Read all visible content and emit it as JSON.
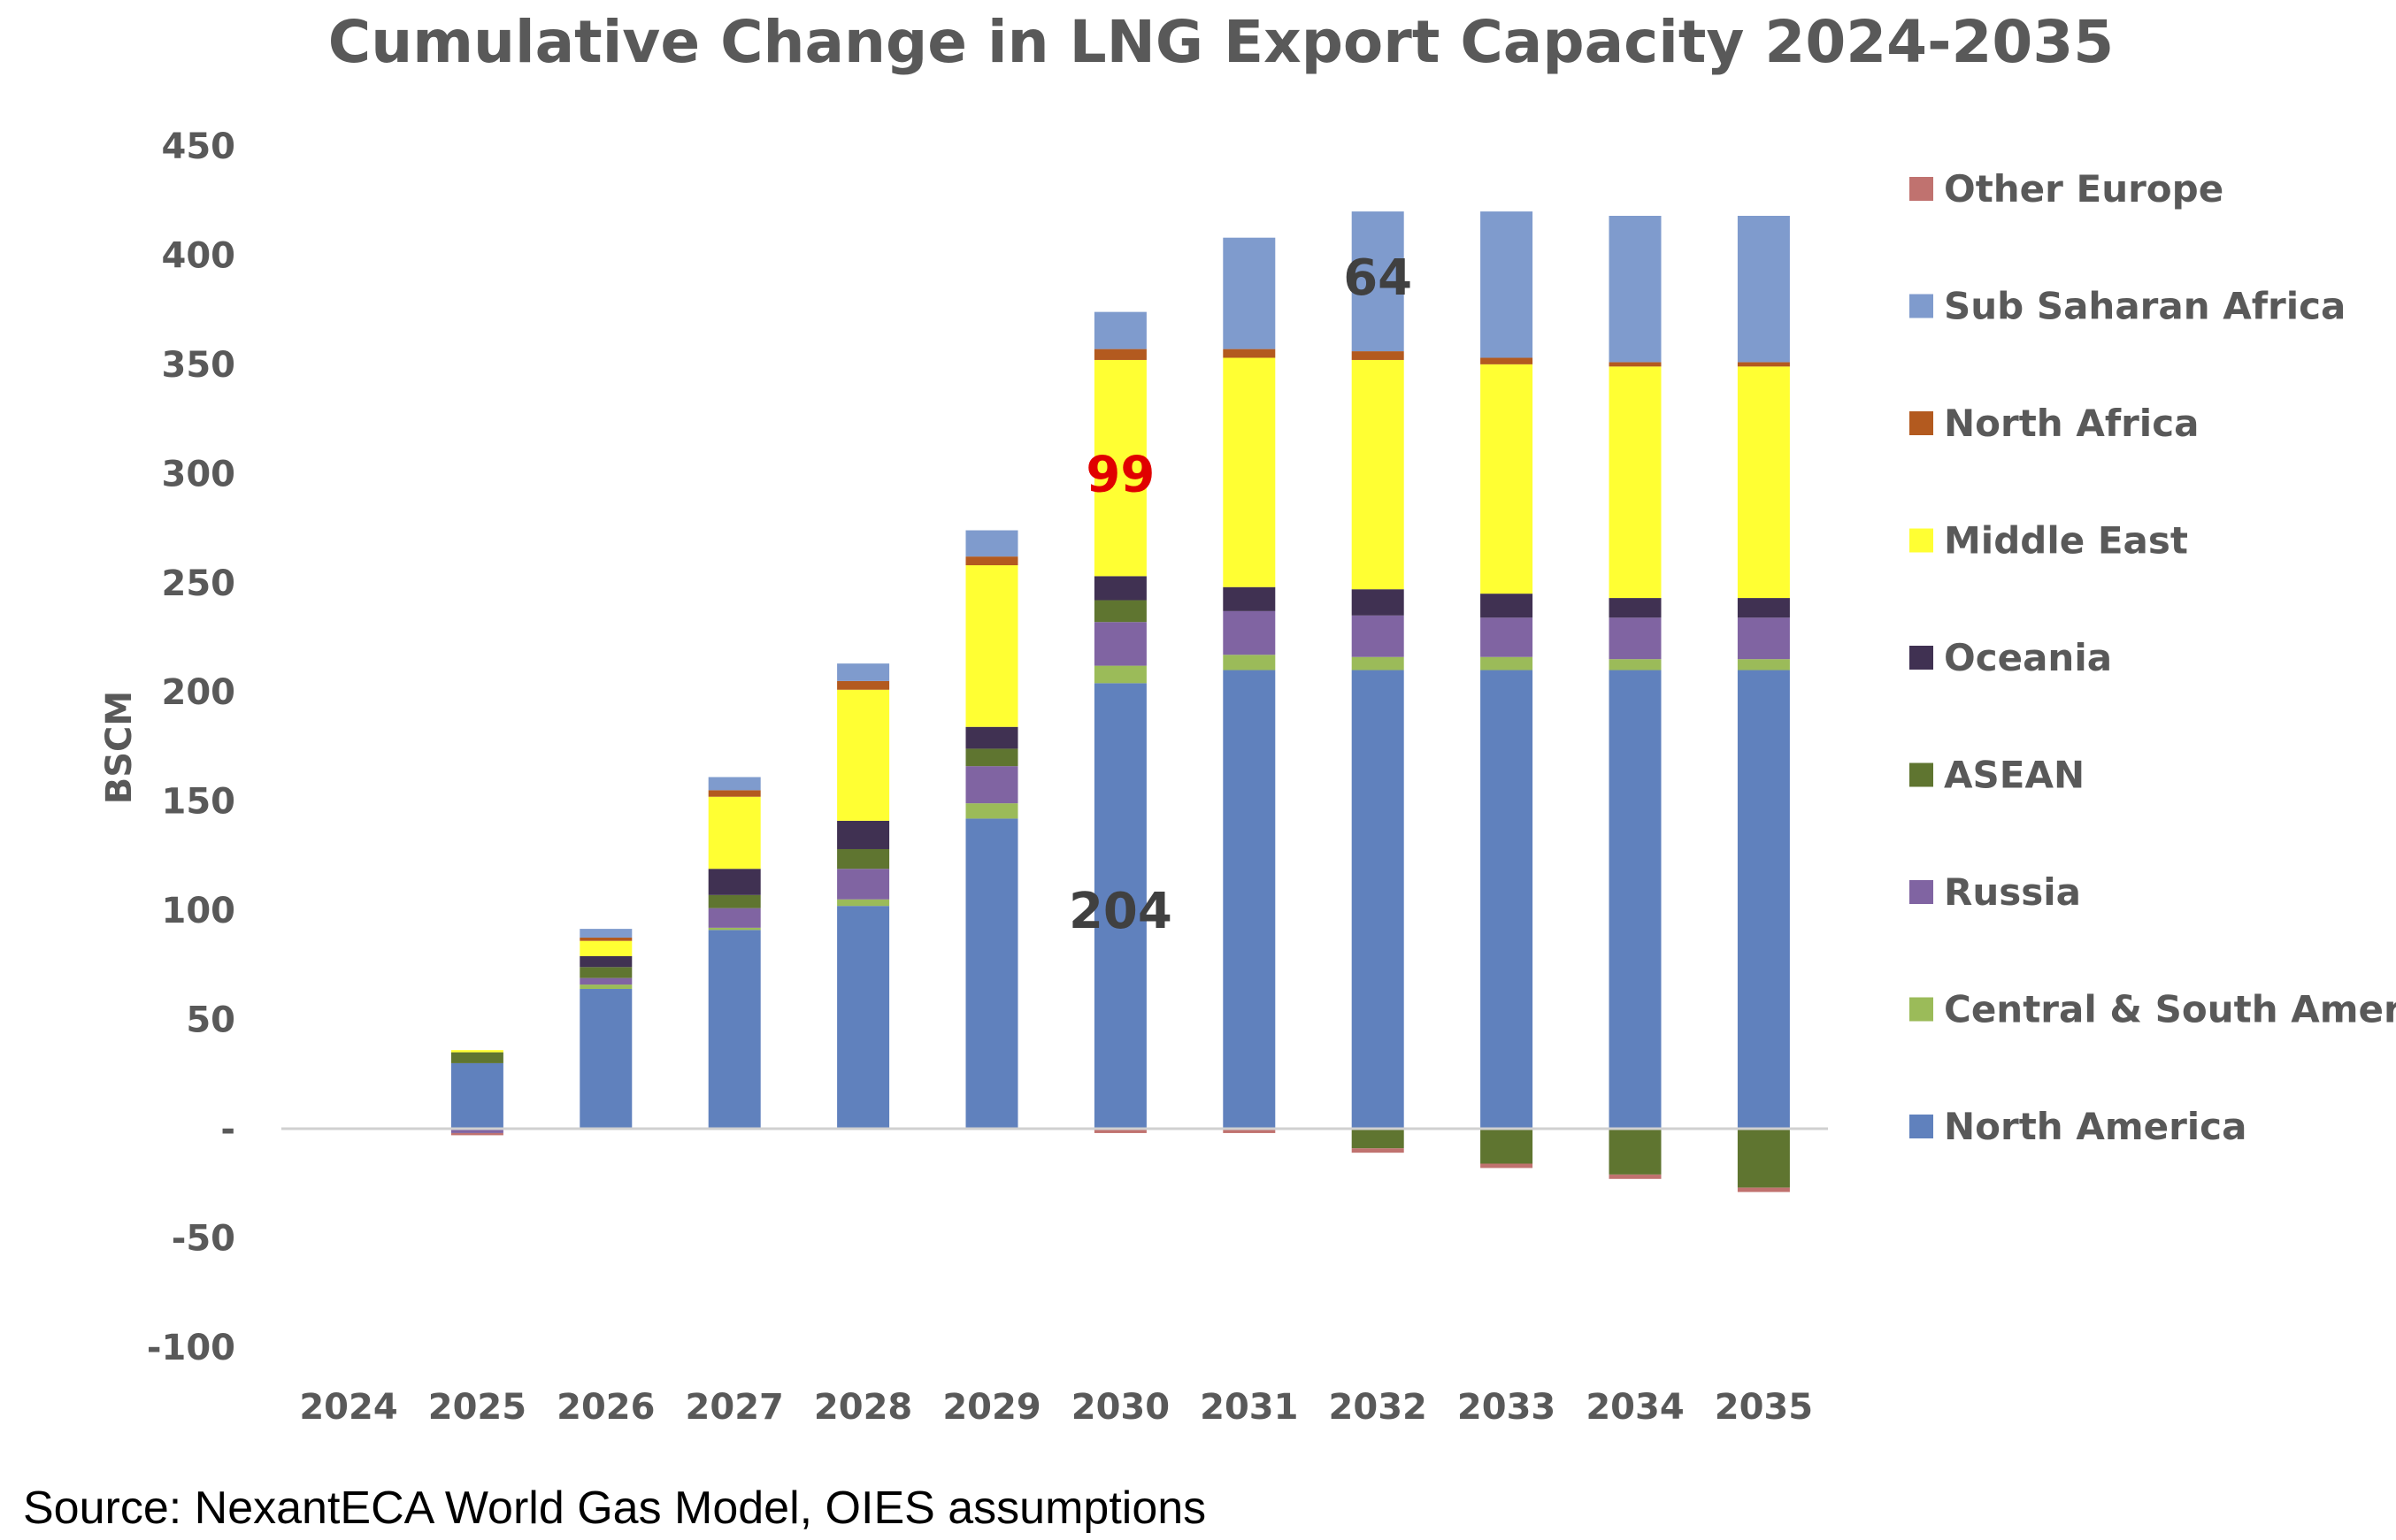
{
  "chart_data": {
    "type": "bar",
    "stacked": true,
    "title": "Cumulative Change in LNG Export Capacity 2024-2035",
    "xlabel": "",
    "ylabel": "BSCM",
    "ylim": [
      -100,
      450
    ],
    "yticks": [
      -100,
      -50,
      0,
      50,
      100,
      150,
      200,
      250,
      300,
      350,
      400,
      450
    ],
    "ytick_labels": [
      "-100",
      "-50",
      "-",
      "50",
      "100",
      "150",
      "200",
      "250",
      "300",
      "350",
      "400",
      "450"
    ],
    "grid": false,
    "legend_position": "right",
    "categories": [
      "2024",
      "2025",
      "2026",
      "2027",
      "2028",
      "2029",
      "2030",
      "2031",
      "2032",
      "2033",
      "2034",
      "2035"
    ],
    "series": [
      {
        "name": "North America",
        "color": "#6081BD",
        "values": [
          0,
          30,
          64,
          91,
          102,
          142,
          204,
          210,
          210,
          210,
          210,
          210
        ]
      },
      {
        "name": "Central & South America",
        "color": "#9BBB59",
        "values": [
          0,
          0,
          2,
          1,
          3,
          7,
          8,
          7,
          6,
          6,
          5,
          5
        ]
      },
      {
        "name": "Russia",
        "color": "#8064A2",
        "values": [
          0,
          -2,
          3,
          9,
          14,
          17,
          20,
          20,
          19,
          18,
          19,
          19
        ]
      },
      {
        "name": "ASEAN",
        "color": "#5F7530",
        "values": [
          0,
          5,
          5,
          6,
          9,
          8,
          10,
          0,
          -9,
          -16,
          -21,
          -27
        ]
      },
      {
        "name": "Oceania",
        "color": "#403152",
        "values": [
          0,
          0,
          5,
          12,
          13,
          10,
          11,
          11,
          12,
          11,
          9,
          9
        ]
      },
      {
        "name": "Middle East",
        "color": "#FFFF33",
        "values": [
          0,
          1,
          7,
          33,
          60,
          74,
          99,
          105,
          105,
          105,
          106,
          106
        ]
      },
      {
        "name": "North Africa",
        "color": "#B35A1F",
        "values": [
          0,
          0,
          1.5,
          3,
          4,
          4,
          5,
          4,
          4,
          3,
          2,
          2
        ]
      },
      {
        "name": "Sub Saharan Africa",
        "color": "#7F9BCD",
        "values": [
          0,
          0,
          4,
          6,
          8,
          12,
          17,
          51,
          64,
          67,
          67,
          67
        ]
      },
      {
        "name": "Other Europe",
        "color": "#C0726F",
        "values": [
          0,
          -1,
          0,
          0,
          0,
          0,
          -2,
          -2,
          -2,
          -2,
          -2,
          -2
        ]
      }
    ],
    "annotations": [
      {
        "text": "204",
        "category": "2030",
        "y": 100,
        "color": "#404040"
      },
      {
        "text": "99",
        "category": "2030",
        "y": 300,
        "color": "#E00000"
      },
      {
        "text": "64",
        "category": "2032",
        "y": 390,
        "color": "#404040"
      }
    ]
  },
  "source": "Source: NexantECA World Gas Model, OIES assumptions"
}
